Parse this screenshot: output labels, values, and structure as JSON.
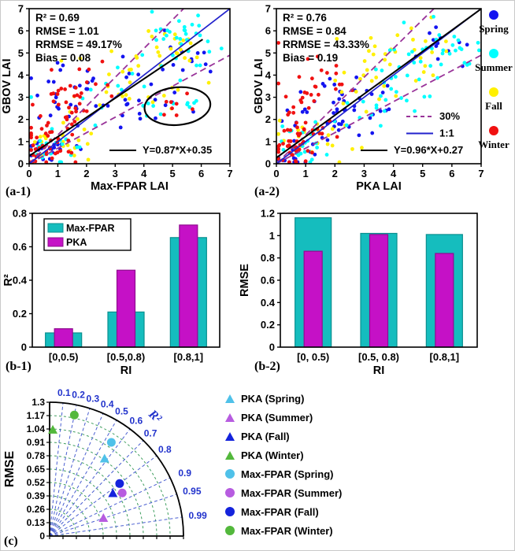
{
  "scatter_legend": {
    "items": [
      {
        "label": "Spring",
        "color": "#1414F0"
      },
      {
        "label": "Summer",
        "color": "#00FFFF"
      },
      {
        "label": "Fall",
        "color": "#FFF000"
      },
      {
        "label": "Winter",
        "color": "#F01111"
      }
    ]
  },
  "cluster_format": "[count, center_x, center_y, sd_x, sd_y]",
  "render": {
    "seed": 9,
    "point_radius": 2.4
  },
  "chart_data": [
    {
      "id": "a1",
      "type": "scatter",
      "panel_label": "(a-1)",
      "xlabel": "Max-FPAR LAI",
      "ylabel": "GBOV LAI",
      "xlim": [
        0,
        7
      ],
      "ylim": [
        0,
        7
      ],
      "xticks": [
        0,
        1,
        2,
        3,
        4,
        5,
        6,
        7
      ],
      "yticks": [
        0,
        1,
        2,
        3,
        4,
        5,
        6,
        7
      ],
      "stats_lines": [
        "R² = 0.69",
        "RMSE = 1.01",
        "RRMSE = 49.17%",
        "Bias = 0.08"
      ],
      "fit_line": {
        "equation": "Y=0.87*X+0.35",
        "slope": 0.87,
        "intercept": 0.35,
        "color": "#000000",
        "x_range": [
          0,
          6.05
        ]
      },
      "one_to_one_line": {
        "label": "1:1",
        "color": "#2222CC"
      },
      "pct_lines": {
        "label": "30%",
        "slopes": [
          1.3,
          0.7
        ],
        "color": "#993399"
      },
      "ellipse_annotation": {
        "cx": 5.17,
        "cy": 2.6,
        "rx": 1.15,
        "ry": 0.85,
        "rotation_deg": -5
      },
      "inner_legend": [
        {
          "label": "Y=0.87*X+0.35",
          "style": "solid",
          "color": "#000000"
        }
      ],
      "series": [
        {
          "name": "Spring",
          "color": "#1414F0",
          "clusters": [
            [
              28,
              1.3,
              2.8,
              0.7,
              1.0
            ],
            [
              20,
              0.6,
              0.5,
              0.4,
              0.35
            ],
            [
              15,
              3.3,
              2.6,
              0.8,
              0.8
            ],
            [
              15,
              5.3,
              4.9,
              0.8,
              0.6
            ],
            [
              6,
              5.1,
              2.9,
              0.6,
              0.45
            ]
          ]
        },
        {
          "name": "Fall",
          "color": "#FFF000",
          "clusters": [
            [
              24,
              4.8,
              5.0,
              0.7,
              0.7
            ],
            [
              20,
              1.2,
              1.0,
              0.7,
              0.6
            ],
            [
              16,
              2.8,
              3.6,
              0.9,
              0.9
            ],
            [
              8,
              5.0,
              2.9,
              0.6,
              0.5
            ]
          ]
        },
        {
          "name": "Summer",
          "color": "#00FFFF",
          "clusters": [
            [
              34,
              5.3,
              5.6,
              0.7,
              0.55
            ],
            [
              20,
              0.8,
              0.8,
              0.5,
              0.5
            ],
            [
              12,
              3.0,
              3.3,
              0.9,
              0.8
            ],
            [
              10,
              5.2,
              2.5,
              0.6,
              0.4
            ]
          ]
        },
        {
          "name": "Winter",
          "color": "#F01111",
          "clusters": [
            [
              44,
              1.0,
              2.3,
              0.55,
              1.0
            ],
            [
              25,
              0.5,
              0.6,
              0.35,
              0.45
            ],
            [
              12,
              2.3,
              3.2,
              0.6,
              0.8
            ],
            [
              8,
              5.0,
              2.6,
              0.55,
              0.45
            ]
          ]
        }
      ]
    },
    {
      "id": "a2",
      "type": "scatter",
      "panel_label": "(a-2)",
      "xlabel": "PKA LAI",
      "ylabel": "GBOV LAI",
      "xlim": [
        0,
        7
      ],
      "ylim": [
        0,
        7
      ],
      "xticks": [
        0,
        1,
        2,
        3,
        4,
        5,
        6,
        7
      ],
      "yticks": [
        0,
        1,
        2,
        3,
        4,
        5,
        6,
        7
      ],
      "stats_lines": [
        "R² = 0.76",
        "RMSE = 0.84",
        "RRMSE = 43.33%",
        "Bias = 0.19"
      ],
      "fit_line": {
        "equation": "Y=0.96*X+0.27",
        "slope": 0.96,
        "intercept": 0.27,
        "color": "#000000",
        "x_range": [
          0,
          7
        ]
      },
      "one_to_one_line": {
        "label": "1:1",
        "color": "#2222CC"
      },
      "pct_lines": {
        "label": "30%",
        "slopes": [
          1.3,
          0.7
        ],
        "color": "#993399"
      },
      "ellipse_annotation": null,
      "inner_legend": [
        {
          "label": "30%",
          "style": "dashed",
          "color": "#993399"
        },
        {
          "label": "1:1",
          "style": "solid",
          "color": "#2222CC"
        },
        {
          "label": "Y=0.96*X+0.27",
          "style": "solid",
          "color": "#000000"
        }
      ],
      "series": [
        {
          "name": "Spring",
          "color": "#1414F0",
          "clusters": [
            [
              24,
              1.5,
              2.0,
              0.8,
              0.9
            ],
            [
              15,
              0.5,
              0.5,
              0.35,
              0.35
            ],
            [
              14,
              2.2,
              2.3,
              0.7,
              0.7
            ],
            [
              12,
              3.2,
              2.8,
              0.8,
              0.7
            ],
            [
              12,
              5.6,
              5.2,
              0.6,
              0.5
            ]
          ]
        },
        {
          "name": "Fall",
          "color": "#FFF000",
          "clusters": [
            [
              24,
              4.4,
              5.1,
              0.8,
              0.65
            ],
            [
              20,
              1.5,
              1.2,
              0.7,
              0.6
            ],
            [
              18,
              2.8,
              3.8,
              0.8,
              0.9
            ]
          ]
        },
        {
          "name": "Summer",
          "color": "#00FFFF",
          "clusters": [
            [
              30,
              5.6,
              5.2,
              0.7,
              0.6
            ],
            [
              25,
              1.0,
              0.9,
              0.6,
              0.5
            ],
            [
              15,
              3.3,
              2.9,
              0.9,
              0.7
            ],
            [
              12,
              4.3,
              3.4,
              0.6,
              0.5
            ]
          ]
        },
        {
          "name": "Winter",
          "color": "#F01111",
          "clusters": [
            [
              40,
              0.9,
              2.2,
              0.5,
              1.0
            ],
            [
              30,
              0.5,
              0.7,
              0.35,
              0.5
            ],
            [
              10,
              1.8,
              3.6,
              0.5,
              0.6
            ]
          ]
        }
      ]
    },
    {
      "id": "b1",
      "type": "bar",
      "panel_label": "(b-1)",
      "xlabel": "RI",
      "ylabel": "R²",
      "ylim": [
        0,
        0.8
      ],
      "yticks": [
        0,
        0.2,
        0.4,
        0.6,
        0.8
      ],
      "categories": [
        "[0,0.5)",
        "[0.5,0.8)",
        "[0.8,1]"
      ],
      "series": [
        {
          "name": "Max-FPAR",
          "color": "#15BDBE",
          "edge": "#0A8F8F",
          "values": [
            0.085,
            0.21,
            0.655
          ]
        },
        {
          "name": "PKA",
          "color": "#C511C6",
          "edge": "#8F0D8F",
          "values": [
            0.11,
            0.46,
            0.73
          ]
        }
      ],
      "legend": {
        "visible": true,
        "position": "top-left"
      }
    },
    {
      "id": "b2",
      "type": "bar",
      "panel_label": "(b-2)",
      "xlabel": "RI",
      "ylabel": "RMSE",
      "ylim": [
        0,
        1.2
      ],
      "yticks": [
        0,
        0.2,
        0.4,
        0.6,
        0.8,
        1,
        1.2
      ],
      "categories": [
        "[0, 0.5)",
        "[0.5, 0.8)",
        "[0.8,1]"
      ],
      "series": [
        {
          "name": "Max-FPAR",
          "color": "#15BDBE",
          "edge": "#0A8F8F",
          "values": [
            1.16,
            1.02,
            1.01
          ]
        },
        {
          "name": "PKA",
          "color": "#C511C6",
          "edge": "#8F0D8F",
          "values": [
            0.86,
            1.01,
            0.84
          ]
        }
      ],
      "legend": {
        "visible": false
      }
    },
    {
      "id": "c",
      "type": "taylor_polar",
      "panel_label": "(c)",
      "ylabel": "RMSE",
      "rmse_max": 1.3,
      "rmse_ticks": [
        0,
        0.13,
        0.26,
        0.39,
        0.52,
        0.65,
        0.78,
        0.91,
        1.04,
        1.17,
        1.3
      ],
      "r2_axis_label": "R²",
      "r2_gridlines": [
        0.1,
        0.2,
        0.3,
        0.4,
        0.5,
        0.6,
        0.7,
        0.8,
        0.9,
        0.95,
        0.99
      ],
      "grid_colors": {
        "radial": "#4A5FD1",
        "arc": "#3F9E5E",
        "labels": "#2233CC"
      },
      "points": [
        {
          "name": "PKA (Spring)",
          "marker": "triangle",
          "color": "#4FC1E9",
          "rmse": 0.92,
          "r2": 0.58
        },
        {
          "name": "PKA (Summer)",
          "marker": "triangle",
          "color": "#B75CE0",
          "rmse": 0.55,
          "r2": 0.95
        },
        {
          "name": "PKA (Fall)",
          "marker": "triangle",
          "color": "#1423DC",
          "rmse": 0.74,
          "r2": 0.83
        },
        {
          "name": "PKA (Winter)",
          "marker": "triangle",
          "color": "#53B83C",
          "rmse": 1.03,
          "r2": 0.03
        },
        {
          "name": "Max-FPAR (Spring)",
          "marker": "circle",
          "color": "#4FC1E9",
          "rmse": 1.09,
          "r2": 0.55
        },
        {
          "name": "Max-FPAR (Summer)",
          "marker": "circle",
          "color": "#B75CE0",
          "rmse": 0.82,
          "r2": 0.86
        },
        {
          "name": "Max-FPAR (Fall)",
          "marker": "circle",
          "color": "#1423DC",
          "rmse": 0.85,
          "r2": 0.8
        },
        {
          "name": "Max-FPAR (Winter)",
          "marker": "circle",
          "color": "#53B83C",
          "rmse": 1.2,
          "r2": 0.2
        }
      ]
    }
  ]
}
